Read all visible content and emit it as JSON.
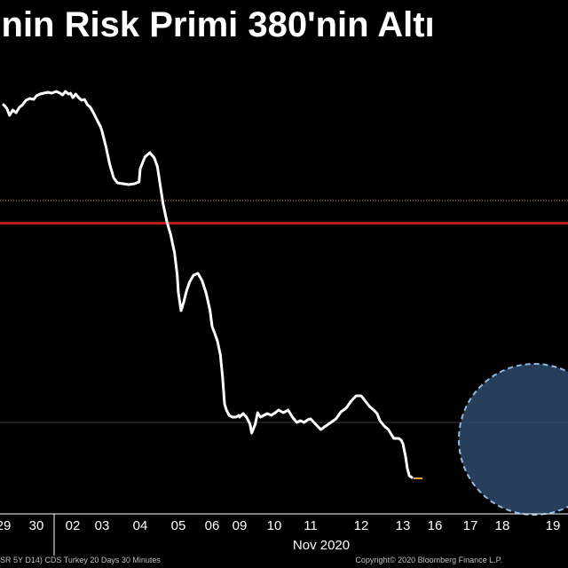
{
  "title": "'nin Risk Primi 380'nin Altı",
  "footer": {
    "source": "SR 5Y D14) CDS Turkey 20 Days 30 Minutes",
    "copyright": "Copyright© 2020 Bloomberg Finance L.P."
  },
  "colors": {
    "background": "#000000",
    "line": "#ffffff",
    "reference_line": "#e0201b",
    "dotted_line": "#e8a53c",
    "highlight_fill": "#2f4a6b",
    "highlight_stroke": "#8fb8e6"
  },
  "chart_data": {
    "type": "line",
    "title": "'nin Risk Primi 380'nin Altı",
    "xlabel": "",
    "ylabel": "",
    "x_axis": {
      "month_label": "Nov 2020",
      "tick_labels": [
        "29",
        "30",
        "02",
        "03",
        "04",
        "05",
        "06",
        "09",
        "10",
        "11",
        "12",
        "13",
        "16",
        "17",
        "18",
        "19"
      ]
    },
    "series": [
      {
        "points": [
          [
            0,
            118
          ],
          [
            0.1,
            122
          ],
          [
            0.18,
            130
          ],
          [
            0.28,
            124
          ],
          [
            0.38,
            127
          ],
          [
            0.48,
            121
          ],
          [
            0.58,
            118
          ],
          [
            0.68,
            113
          ],
          [
            0.8,
            111
          ],
          [
            0.92,
            112
          ],
          [
            1.0,
            108
          ],
          [
            1.1,
            106
          ],
          [
            1.2,
            105
          ],
          [
            1.32,
            104
          ],
          [
            1.42,
            105
          ],
          [
            1.55,
            103
          ],
          [
            1.65,
            105
          ],
          [
            1.72,
            107
          ],
          [
            1.8,
            103
          ],
          [
            1.88,
            106
          ],
          [
            1.94,
            105
          ],
          [
            2.0,
            110
          ],
          [
            2.1,
            106
          ],
          [
            2.2,
            110
          ],
          [
            2.3,
            113
          ],
          [
            2.4,
            112
          ],
          [
            2.5,
            118
          ],
          [
            2.6,
            121
          ],
          [
            2.72,
            128
          ],
          [
            2.84,
            136
          ],
          [
            2.95,
            143
          ],
          [
            3.0,
            148
          ],
          [
            3.1,
            165
          ],
          [
            3.2,
            185
          ],
          [
            3.3,
            200
          ],
          [
            3.4,
            206
          ],
          [
            3.55,
            207
          ],
          [
            3.7,
            208
          ],
          [
            3.85,
            207
          ],
          [
            3.97,
            205
          ],
          [
            4.0,
            190
          ],
          [
            4.12,
            177
          ],
          [
            4.25,
            172
          ],
          [
            4.37,
            178
          ],
          [
            4.45,
            188
          ],
          [
            4.52,
            208
          ],
          [
            4.6,
            230
          ],
          [
            4.7,
            250
          ],
          [
            4.8,
            265
          ],
          [
            4.9,
            285
          ],
          [
            4.97,
            310
          ],
          [
            5.0,
            330
          ],
          [
            5.08,
            350
          ],
          [
            5.16,
            340
          ],
          [
            5.24,
            328
          ],
          [
            5.33,
            318
          ],
          [
            5.45,
            310
          ],
          [
            5.58,
            308
          ],
          [
            5.7,
            316
          ],
          [
            5.82,
            330
          ],
          [
            5.94,
            350
          ],
          [
            6.0,
            368
          ],
          [
            6.1,
            376
          ],
          [
            6.2,
            385
          ],
          [
            6.3,
            400
          ],
          [
            6.38,
            425
          ],
          [
            6.45,
            455
          ],
          [
            6.52,
            462
          ],
          [
            6.62,
            468
          ],
          [
            6.74,
            470
          ],
          [
            6.86,
            470
          ],
          [
            6.97,
            468
          ],
          [
            7.0,
            470
          ],
          [
            7.1,
            466
          ],
          [
            7.2,
            470
          ],
          [
            7.3,
            478
          ],
          [
            7.35,
            488
          ],
          [
            7.45,
            478
          ],
          [
            7.52,
            465
          ],
          [
            7.6,
            470
          ],
          [
            7.7,
            468
          ],
          [
            7.8,
            466
          ],
          [
            7.92,
            468
          ],
          [
            7.98,
            466
          ],
          [
            8.0,
            466
          ],
          [
            8.12,
            462
          ],
          [
            8.25,
            465
          ],
          [
            8.38,
            462
          ],
          [
            8.5,
            470
          ],
          [
            8.62,
            476
          ],
          [
            8.72,
            474
          ],
          [
            8.82,
            476
          ],
          [
            8.92,
            473
          ],
          [
            8.98,
            472
          ],
          [
            9.0,
            472
          ],
          [
            9.1,
            478
          ],
          [
            9.2,
            484
          ],
          [
            9.3,
            480
          ],
          [
            9.4,
            476
          ],
          [
            9.5,
            472
          ],
          [
            9.6,
            464
          ],
          [
            9.7,
            460
          ],
          [
            9.8,
            452
          ],
          [
            9.9,
            446
          ],
          [
            9.98,
            446
          ],
          [
            10.0,
            446
          ],
          [
            10.1,
            452
          ],
          [
            10.2,
            458
          ],
          [
            10.3,
            462
          ],
          [
            10.38,
            466
          ],
          [
            10.45,
            474
          ],
          [
            10.55,
            480
          ],
          [
            10.65,
            484
          ],
          [
            10.78,
            494
          ],
          [
            10.9,
            494
          ],
          [
            10.96,
            496
          ],
          [
            11.0,
            500
          ],
          [
            11.08,
            514
          ],
          [
            11.14,
            528
          ],
          [
            11.2,
            536
          ],
          [
            11.28,
            538
          ]
        ]
      }
    ],
    "reference_line": {
      "label": "",
      "value": 1
    },
    "grid": false,
    "annotations": [
      "highlight-circle"
    ]
  }
}
